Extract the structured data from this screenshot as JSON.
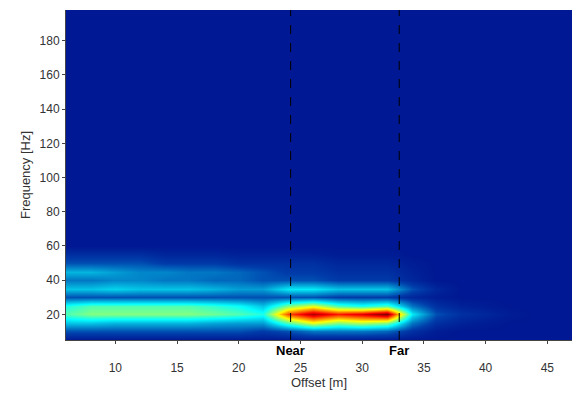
{
  "chart_data": {
    "type": "heatmap",
    "x_label": "Offset [m]",
    "y_label": "Frequency [Hz]",
    "x": [
      6,
      8,
      10,
      12,
      14,
      16,
      18,
      20,
      22,
      24,
      26,
      28,
      30,
      32,
      34,
      36,
      38,
      40,
      42,
      44,
      46
    ],
    "y": [
      5,
      10,
      15,
      20,
      25,
      30,
      35,
      40,
      45,
      50,
      55,
      60,
      70,
      100,
      150,
      198
    ],
    "z": [
      [
        0.05,
        0.05,
        0.05,
        0.05,
        0.05,
        0.05,
        0.05,
        0.05,
        0.05,
        0.05,
        0.05,
        0.05,
        0.05,
        0.05,
        0.05,
        0.05,
        0.05,
        0.05,
        0.05,
        0.05,
        0.05
      ],
      [
        0.15,
        0.15,
        0.15,
        0.15,
        0.15,
        0.15,
        0.15,
        0.15,
        0.12,
        0.15,
        0.2,
        0.2,
        0.2,
        0.18,
        0.1,
        0.06,
        0.05,
        0.05,
        0.05,
        0.05,
        0.05
      ],
      [
        0.3,
        0.3,
        0.28,
        0.28,
        0.28,
        0.28,
        0.26,
        0.25,
        0.25,
        0.45,
        0.6,
        0.5,
        0.55,
        0.5,
        0.2,
        0.1,
        0.07,
        0.06,
        0.05,
        0.05,
        0.05
      ],
      [
        0.45,
        0.5,
        0.5,
        0.5,
        0.5,
        0.5,
        0.48,
        0.45,
        0.4,
        0.8,
        0.95,
        0.85,
        0.9,
        1.0,
        0.35,
        0.15,
        0.1,
        0.08,
        0.06,
        0.05,
        0.05
      ],
      [
        0.4,
        0.45,
        0.45,
        0.45,
        0.45,
        0.45,
        0.42,
        0.38,
        0.3,
        0.5,
        0.6,
        0.45,
        0.4,
        0.45,
        0.2,
        0.1,
        0.07,
        0.06,
        0.05,
        0.05,
        0.05
      ],
      [
        0.15,
        0.15,
        0.15,
        0.15,
        0.15,
        0.15,
        0.15,
        0.15,
        0.15,
        0.15,
        0.15,
        0.12,
        0.12,
        0.12,
        0.08,
        0.06,
        0.05,
        0.05,
        0.05,
        0.05,
        0.05
      ],
      [
        0.3,
        0.3,
        0.32,
        0.3,
        0.3,
        0.3,
        0.28,
        0.25,
        0.25,
        0.35,
        0.35,
        0.3,
        0.3,
        0.3,
        0.15,
        0.08,
        0.05,
        0.05,
        0.05,
        0.05,
        0.05
      ],
      [
        0.2,
        0.2,
        0.22,
        0.22,
        0.2,
        0.2,
        0.18,
        0.18,
        0.15,
        0.15,
        0.15,
        0.12,
        0.12,
        0.12,
        0.08,
        0.05,
        0.05,
        0.05,
        0.05,
        0.05,
        0.05
      ],
      [
        0.28,
        0.28,
        0.25,
        0.22,
        0.22,
        0.2,
        0.2,
        0.18,
        0.15,
        0.12,
        0.12,
        0.1,
        0.1,
        0.1,
        0.07,
        0.05,
        0.05,
        0.05,
        0.05,
        0.05,
        0.05
      ],
      [
        0.15,
        0.15,
        0.15,
        0.15,
        0.12,
        0.12,
        0.12,
        0.1,
        0.1,
        0.1,
        0.1,
        0.08,
        0.08,
        0.08,
        0.06,
        0.05,
        0.05,
        0.05,
        0.05,
        0.05,
        0.05
      ],
      [
        0.1,
        0.1,
        0.1,
        0.1,
        0.08,
        0.08,
        0.08,
        0.07,
        0.07,
        0.07,
        0.07,
        0.06,
        0.06,
        0.06,
        0.05,
        0.05,
        0.05,
        0.05,
        0.05,
        0.05,
        0.05
      ],
      [
        0.05,
        0.05,
        0.05,
        0.05,
        0.05,
        0.05,
        0.05,
        0.05,
        0.05,
        0.05,
        0.05,
        0.05,
        0.05,
        0.05,
        0.05,
        0.05,
        0.05,
        0.05,
        0.05,
        0.05,
        0.05
      ],
      [
        0.05,
        0.05,
        0.05,
        0.05,
        0.05,
        0.05,
        0.05,
        0.05,
        0.05,
        0.05,
        0.05,
        0.05,
        0.05,
        0.05,
        0.05,
        0.05,
        0.05,
        0.05,
        0.05,
        0.05,
        0.05
      ],
      [
        0.05,
        0.05,
        0.05,
        0.05,
        0.05,
        0.05,
        0.05,
        0.05,
        0.05,
        0.05,
        0.05,
        0.05,
        0.05,
        0.05,
        0.05,
        0.05,
        0.05,
        0.05,
        0.05,
        0.05,
        0.05
      ],
      [
        0.05,
        0.05,
        0.05,
        0.05,
        0.05,
        0.05,
        0.05,
        0.05,
        0.05,
        0.05,
        0.05,
        0.05,
        0.05,
        0.05,
        0.05,
        0.05,
        0.05,
        0.05,
        0.05,
        0.05,
        0.05
      ],
      [
        0.05,
        0.05,
        0.05,
        0.05,
        0.05,
        0.05,
        0.05,
        0.05,
        0.05,
        0.05,
        0.05,
        0.05,
        0.05,
        0.05,
        0.05,
        0.05,
        0.05,
        0.05,
        0.05,
        0.05,
        0.05
      ]
    ],
    "zlim": [
      0,
      1
    ],
    "color": "Jet",
    "xlim": [
      6,
      47
    ],
    "ylim": [
      5,
      198
    ],
    "xticks": [
      10,
      15,
      20,
      25,
      30,
      35,
      40,
      45
    ],
    "yticks": [
      20,
      40,
      60,
      80,
      100,
      120,
      140,
      160,
      180
    ],
    "grid": false,
    "annotations": [
      {
        "text": "Near",
        "x": 24.2,
        "line_style": "dash"
      },
      {
        "text": "Far",
        "x": 33,
        "line_style": "dash"
      }
    ]
  }
}
